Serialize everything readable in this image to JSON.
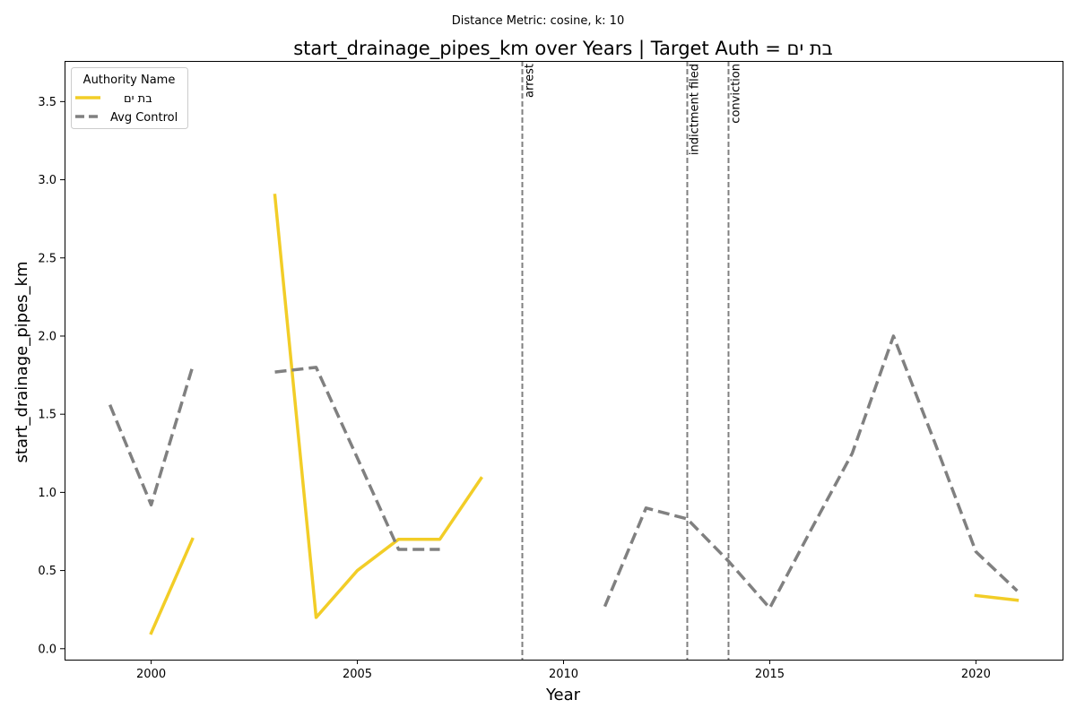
{
  "chart_data": {
    "type": "line",
    "suptitle": "Distance Metric: cosine, k: 10",
    "title": "start_drainage_pipes_km over Years | Target Auth = בת ים",
    "xlabel": "Year",
    "ylabel": "start_drainage_pipes_km",
    "xlim": [
      1997.9,
      2022.1
    ],
    "ylim": [
      -0.07,
      3.76
    ],
    "xticks": [
      2000,
      2005,
      2010,
      2015,
      2020
    ],
    "yticks": [
      0.0,
      0.5,
      1.0,
      1.5,
      2.0,
      2.5,
      3.0,
      3.5
    ],
    "grid": false,
    "legend": {
      "title": "Authority Name",
      "placement": "upper-left"
    },
    "series": [
      {
        "name": "בת ים",
        "color": "#f2cd27",
        "style": "solid",
        "segments": [
          [
            [
              2000,
              0.1
            ],
            [
              2001,
              0.7
            ]
          ],
          [
            [
              2003,
              2.9
            ],
            [
              2004,
              0.2
            ],
            [
              2005,
              0.5
            ],
            [
              2006,
              0.7
            ],
            [
              2007,
              0.7
            ],
            [
              2008,
              1.09
            ]
          ],
          [
            [
              2020,
              0.34
            ],
            [
              2021,
              0.31
            ]
          ]
        ]
      },
      {
        "name": "Avg Control",
        "color": "#808080",
        "style": "dashed",
        "segments": [
          [
            [
              1999,
              1.56
            ],
            [
              2000,
              0.92
            ],
            [
              2001,
              1.8
            ]
          ],
          [
            [
              2003,
              1.77
            ],
            [
              2004,
              1.8
            ],
            [
              2005,
              1.22
            ],
            [
              2006,
              0.635
            ],
            [
              2007,
              0.635
            ]
          ],
          [
            [
              2011,
              0.27
            ],
            [
              2012,
              0.9
            ],
            [
              2013,
              0.83
            ],
            [
              2014,
              0.56
            ],
            [
              2015,
              0.26
            ],
            [
              2016,
              0.76
            ],
            [
              2017,
              1.25
            ],
            [
              2018,
              2.0
            ],
            [
              2019,
              1.32
            ],
            [
              2020,
              0.62
            ],
            [
              2021,
              0.37
            ]
          ]
        ]
      }
    ],
    "events": [
      {
        "x": 2009,
        "label": "arrest"
      },
      {
        "x": 2013,
        "label": "indictment filed"
      },
      {
        "x": 2014,
        "label": "conviction"
      }
    ]
  }
}
